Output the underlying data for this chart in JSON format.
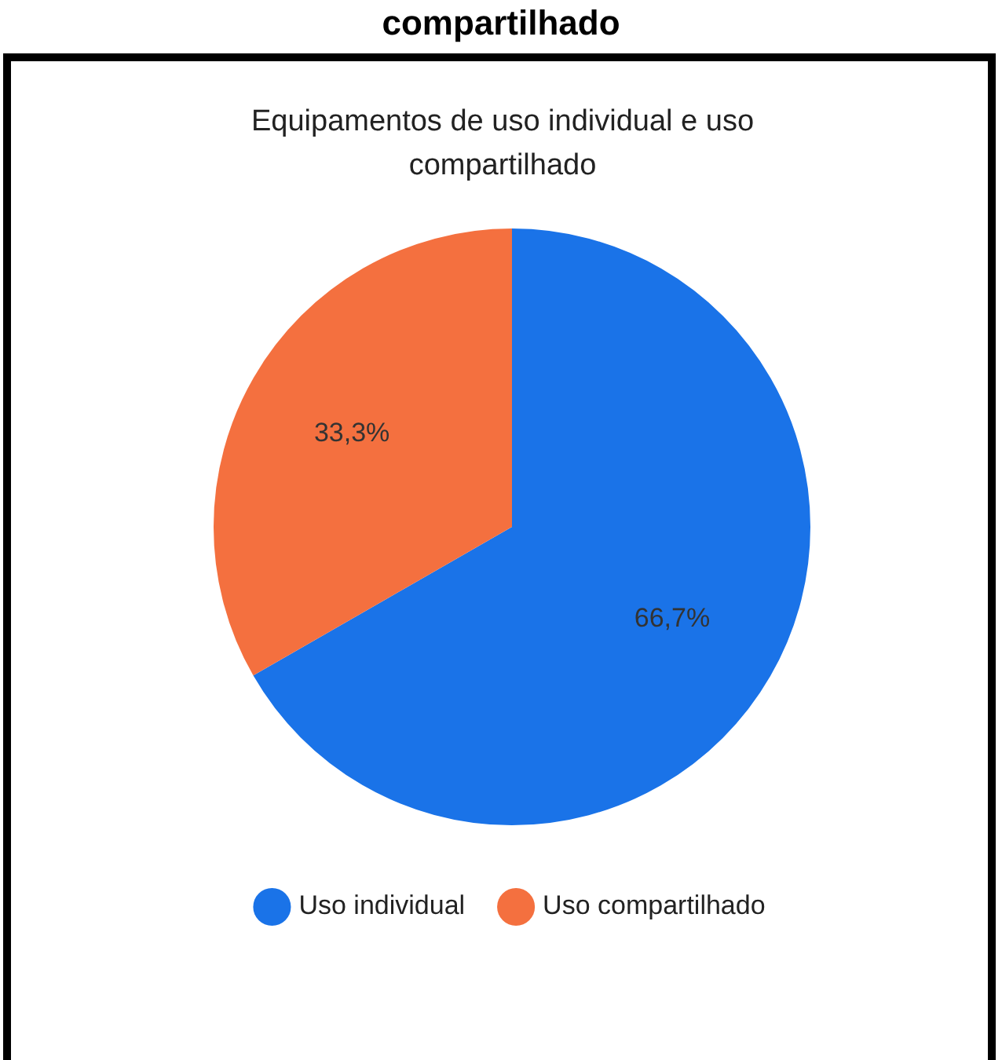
{
  "chart_data": {
    "type": "pie",
    "title": "Equipamentos de uso individual e uso compartilhado",
    "annotations": [
      "compartilhado"
    ],
    "categories": [
      "Uso individual",
      "Uso compartilhado"
    ],
    "values": [
      66.7,
      33.3
    ],
    "colors": [
      "#1a73e8",
      "#f4703f"
    ],
    "value_labels": [
      "66,7%",
      "33,3%"
    ],
    "legend": "bottom"
  }
}
